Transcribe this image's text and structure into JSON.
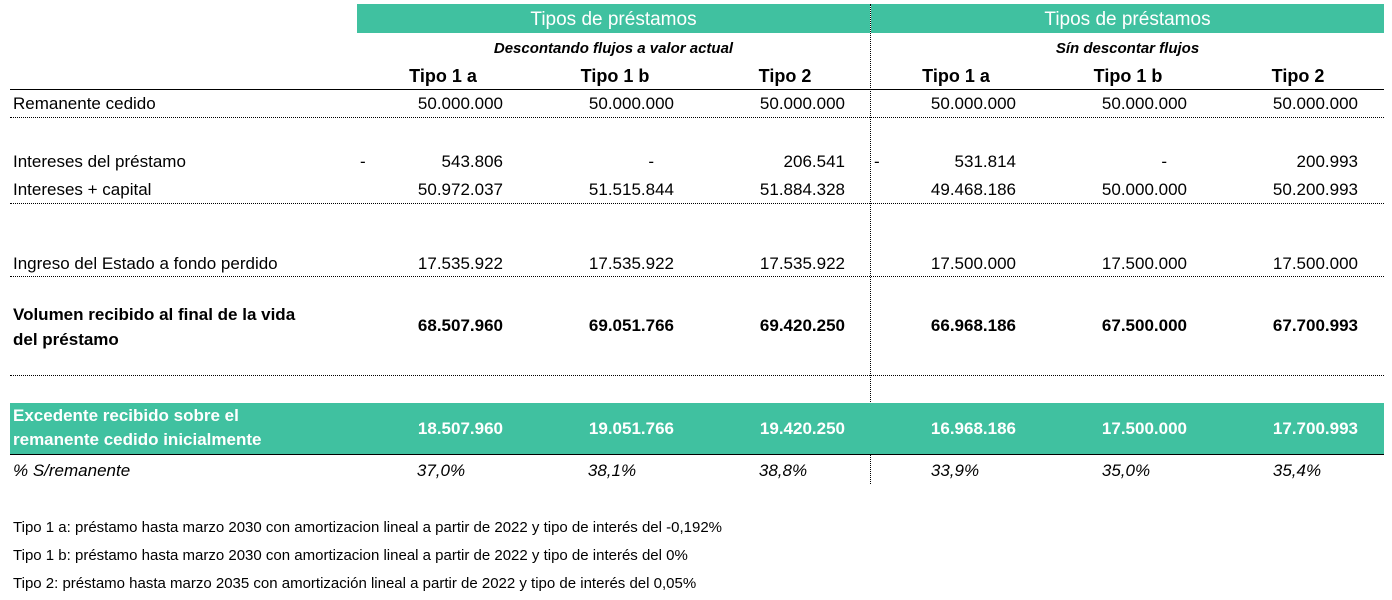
{
  "header": {
    "group_a_title": "Tipos de préstamos",
    "group_b_title": "Tipos de préstamos",
    "group_a_subtitle": "Descontando flujos a valor actual",
    "group_b_subtitle": "Sín descontar flujos",
    "columns": [
      "Tipo 1 a",
      "Tipo 1 b",
      "Tipo 2",
      "Tipo 1 a",
      "Tipo 1 b",
      "Tipo 2"
    ]
  },
  "rows": {
    "remanente": {
      "label": "Remanente cedido",
      "values": [
        "50.000.000",
        "50.000.000",
        "50.000.000",
        "50.000.000",
        "50.000.000",
        "50.000.000"
      ]
    },
    "intereses": {
      "label": "Intereses del préstamo",
      "prefix_a": "-",
      "prefix_b": "-",
      "values": [
        "543.806",
        "-",
        "206.541",
        "531.814",
        "-",
        "200.993"
      ]
    },
    "intereses_capital": {
      "label": "Intereses + capital",
      "values": [
        "50.972.037",
        "51.515.844",
        "51.884.328",
        "49.468.186",
        "50.000.000",
        "50.200.993"
      ]
    },
    "ingreso_estado": {
      "label": "Ingreso del Estado a fondo perdido",
      "values": [
        "17.535.922",
        "17.535.922",
        "17.535.922",
        "17.500.000",
        "17.500.000",
        "17.500.000"
      ]
    },
    "volumen": {
      "label_line1": "Volumen recibido al final de la vida",
      "label_line2": "del préstamo",
      "values": [
        "68.507.960",
        "69.051.766",
        "69.420.250",
        "66.968.186",
        "67.500.000",
        "67.700.993"
      ]
    },
    "excedente": {
      "label_line1": "Excedente recibido sobre el",
      "label_line2": "remanente cedido inicialmente",
      "values": [
        "18.507.960",
        "19.051.766",
        "19.420.250",
        "16.968.186",
        "17.500.000",
        "17.700.993"
      ]
    },
    "porcentaje": {
      "label": "% S/remanente",
      "values": [
        "37,0%",
        "38,1%",
        "38,8%",
        "33,9%",
        "35,0%",
        "35,4%"
      ]
    }
  },
  "notes": [
    "Tipo 1 a: préstamo hasta marzo 2030 con amortizacion lineal a partir de 2022 y tipo de interés del -0,192%",
    "Tipo 1 b: préstamo hasta marzo 2030 con amortizacion lineal a partir de 2022 y tipo de interés del 0%",
    "Tipo 2: préstamo hasta marzo 2035 con amortización lineal a partir de 2022 y tipo de interés del 0,05%"
  ],
  "colors": {
    "accent": "#40c1a0",
    "accent_text": "#ffffff",
    "text": "#000000"
  }
}
